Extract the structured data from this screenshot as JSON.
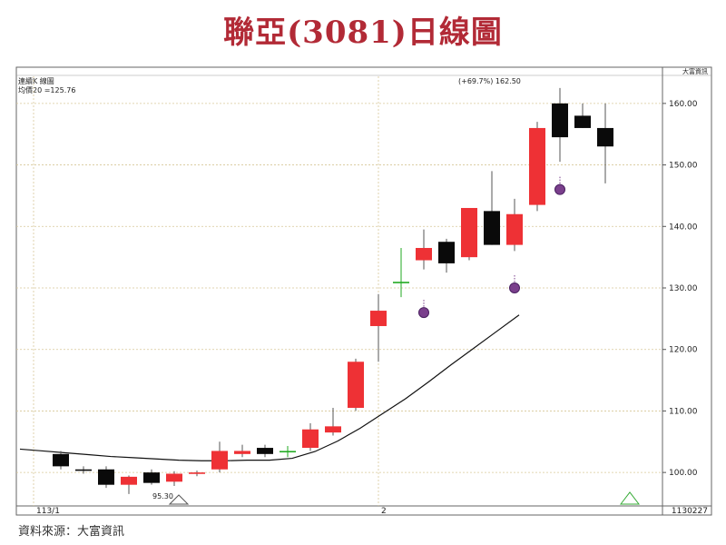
{
  "title": "聯亞(3081)日線圖",
  "source": "資料來源：大富資訊",
  "chart_data": {
    "type": "candlestick",
    "title": "聯亞(3081)日線圖",
    "ylim": [
      95,
      165
    ],
    "ytick_values": [
      100,
      110,
      120,
      130,
      140,
      150,
      160
    ],
    "ytick_labels": [
      "100.00",
      "110.00",
      "120.00",
      "130.00",
      "140.00",
      "150.00",
      "160.00"
    ],
    "xlabels": [
      {
        "label": "113/1",
        "index": -1
      },
      {
        "label": "2",
        "index": 14
      },
      {
        "label": "1130227",
        "index": 29
      }
    ],
    "header_left": "連續K 線圖",
    "header_left2": "均價20 =125.76",
    "header_right": "大富資訊",
    "annotation_high": "(+69.7%) 162.50",
    "annotation_low": "95.30",
    "colors": {
      "up": "#ee3135",
      "down": "#0a0a0a",
      "flat": "#22aa22",
      "ma": "#111111",
      "marker": "#7a3f8c",
      "grid": "#d8c898",
      "axis": "#555555",
      "title": "#b22a36"
    },
    "candles": [
      {
        "o": 103.0,
        "h": 103.5,
        "l": 100.5,
        "c": 101.0
      },
      {
        "o": 100.5,
        "h": 101.0,
        "l": 99.8,
        "c": 100.3
      },
      {
        "o": 100.5,
        "h": 101.0,
        "l": 97.5,
        "c": 98.0
      },
      {
        "o": 98.0,
        "h": 99.5,
        "l": 96.5,
        "c": 99.3
      },
      {
        "o": 100.0,
        "h": 100.5,
        "l": 98.0,
        "c": 98.3
      },
      {
        "o": 98.5,
        "h": 100.2,
        "l": 97.8,
        "c": 99.8
      },
      {
        "o": 99.8,
        "h": 100.3,
        "l": 99.4,
        "c": 100.0
      },
      {
        "o": 100.5,
        "h": 105.0,
        "l": 100.0,
        "c": 103.5
      },
      {
        "o": 103.0,
        "h": 104.5,
        "l": 102.5,
        "c": 103.5
      },
      {
        "o": 104.0,
        "h": 104.5,
        "l": 102.5,
        "c": 103.0
      },
      {
        "o": 103.5,
        "h": 104.3,
        "l": 102.5,
        "c": 103.5
      },
      {
        "o": 104.0,
        "h": 108.0,
        "l": 103.5,
        "c": 107.0
      },
      {
        "o": 106.5,
        "h": 110.5,
        "l": 106.0,
        "c": 107.5
      },
      {
        "o": 110.5,
        "h": 118.5,
        "l": 110.0,
        "c": 118.0
      },
      {
        "o": 123.8,
        "h": 129.0,
        "l": 118.0,
        "c": 126.3
      },
      {
        "o": 131.0,
        "h": 136.5,
        "l": 128.5,
        "c": 131.0
      },
      {
        "o": 134.5,
        "h": 139.5,
        "l": 133.0,
        "c": 136.5
      },
      {
        "o": 137.5,
        "h": 138.0,
        "l": 132.5,
        "c": 134.0
      },
      {
        "o": 135.0,
        "h": 143.0,
        "l": 134.5,
        "c": 143.0
      },
      {
        "o": 142.5,
        "h": 149.0,
        "l": 137.0,
        "c": 137.0
      },
      {
        "o": 137.0,
        "h": 144.5,
        "l": 136.0,
        "c": 142.0
      },
      {
        "o": 143.5,
        "h": 157.0,
        "l": 142.5,
        "c": 156.0
      },
      {
        "o": 160.0,
        "h": 162.5,
        "l": 150.5,
        "c": 154.5
      },
      {
        "o": 158.0,
        "h": 160.0,
        "l": 156.0,
        "c": 156.0
      },
      {
        "o": 156.0,
        "h": 160.0,
        "l": 147.0,
        "c": 153.0
      }
    ],
    "ma20": [
      103.8,
      103.5,
      103.2,
      102.9,
      102.6,
      102.4,
      102.2,
      102.0,
      101.9,
      101.9,
      102.0,
      102.0,
      102.3,
      103.4,
      105.1,
      107.2,
      109.6,
      112.0,
      114.7,
      117.5,
      120.2,
      122.9,
      125.6
    ],
    "ma_start_index": -1,
    "markers": [
      {
        "index": 16,
        "y": 126.0
      },
      {
        "index": 20,
        "y": 130.0
      },
      {
        "index": 22,
        "y": 146.0
      }
    ]
  }
}
